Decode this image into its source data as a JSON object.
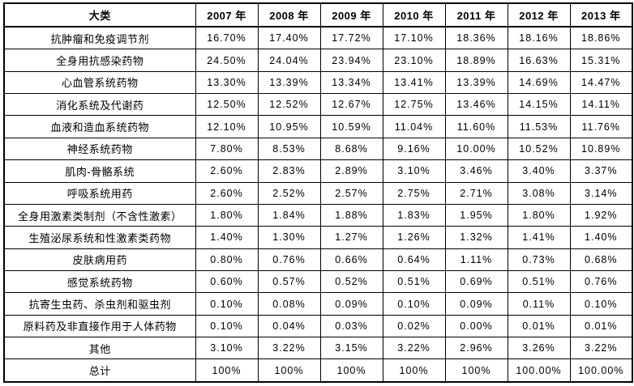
{
  "table": {
    "columns": [
      "大类",
      "2007 年",
      "2008 年",
      "2009 年",
      "2010 年",
      "2011 年",
      "2012 年",
      "2013 年"
    ],
    "rows": [
      {
        "category": "抗肿瘤和免疫调节剂",
        "values": [
          "16.70%",
          "17.40%",
          "17.72%",
          "17.10%",
          "18.36%",
          "18.16%",
          "18.86%"
        ]
      },
      {
        "category": "全身用抗感染药物",
        "values": [
          "24.50%",
          "24.04%",
          "23.94%",
          "23.10%",
          "18.89%",
          "16.63%",
          "15.31%"
        ]
      },
      {
        "category": "心血管系统药物",
        "values": [
          "13.30%",
          "13.39%",
          "13.34%",
          "13.41%",
          "13.39%",
          "14.69%",
          "14.47%"
        ]
      },
      {
        "category": "消化系统及代谢药",
        "values": [
          "12.50%",
          "12.52%",
          "12.67%",
          "12.75%",
          "13.46%",
          "14.15%",
          "14.11%"
        ]
      },
      {
        "category": "血液和造血系统药物",
        "values": [
          "12.10%",
          "10.95%",
          "10.59%",
          "11.04%",
          "11.60%",
          "11.53%",
          "11.76%"
        ]
      },
      {
        "category": "神经系统药物",
        "values": [
          "7.80%",
          "8.53%",
          "8.68%",
          "9.16%",
          "10.00%",
          "10.52%",
          "10.89%"
        ]
      },
      {
        "category": "肌肉-骨骼系统",
        "values": [
          "2.60%",
          "2.83%",
          "2.89%",
          "3.10%",
          "3.46%",
          "3.40%",
          "3.37%"
        ]
      },
      {
        "category": "呼吸系统用药",
        "values": [
          "2.60%",
          "2.52%",
          "2.57%",
          "2.75%",
          "2.71%",
          "3.08%",
          "3.14%"
        ]
      },
      {
        "category": "全身用激素类制剂（不含性激素）",
        "values": [
          "1.80%",
          "1.84%",
          "1.88%",
          "1.83%",
          "1.95%",
          "1.80%",
          "1.92%"
        ]
      },
      {
        "category": "生殖泌尿系统和性激素类药物",
        "values": [
          "1.40%",
          "1.30%",
          "1.27%",
          "1.26%",
          "1.32%",
          "1.41%",
          "1.40%"
        ]
      },
      {
        "category": "皮肤病用药",
        "values": [
          "0.80%",
          "0.76%",
          "0.66%",
          "0.64%",
          "1.11%",
          "0.73%",
          "0.68%"
        ]
      },
      {
        "category": "感觉系统药物",
        "values": [
          "0.60%",
          "0.57%",
          "0.52%",
          "0.51%",
          "0.69%",
          "0.51%",
          "0.76%"
        ]
      },
      {
        "category": "抗寄生虫药、杀虫剂和驱虫剂",
        "values": [
          "0.10%",
          "0.08%",
          "0.09%",
          "0.10%",
          "0.09%",
          "0.11%",
          "0.10%"
        ]
      },
      {
        "category": "原料药及非直接作用于人体药物",
        "values": [
          "0.10%",
          "0.04%",
          "0.03%",
          "0.02%",
          "0.00%",
          "0.01%",
          "0.01%"
        ]
      },
      {
        "category": "其他",
        "values": [
          "3.10%",
          "3.22%",
          "3.15%",
          "3.22%",
          "2.96%",
          "3.26%",
          "3.22%"
        ]
      },
      {
        "category": "总计",
        "values": [
          "100%",
          "100%",
          "100%",
          "100%",
          "100%",
          "100.00%",
          "100.00%"
        ]
      }
    ]
  },
  "chart_data": {
    "type": "table",
    "title": "",
    "unit": "%",
    "categories": [
      "2007",
      "2008",
      "2009",
      "2010",
      "2011",
      "2012",
      "2013"
    ],
    "series": [
      {
        "name": "抗肿瘤和免疫调节剂",
        "values": [
          16.7,
          17.4,
          17.72,
          17.1,
          18.36,
          18.16,
          18.86
        ]
      },
      {
        "name": "全身用抗感染药物",
        "values": [
          24.5,
          24.04,
          23.94,
          23.1,
          18.89,
          16.63,
          15.31
        ]
      },
      {
        "name": "心血管系统药物",
        "values": [
          13.3,
          13.39,
          13.34,
          13.41,
          13.39,
          14.69,
          14.47
        ]
      },
      {
        "name": "消化系统及代谢药",
        "values": [
          12.5,
          12.52,
          12.67,
          12.75,
          13.46,
          14.15,
          14.11
        ]
      },
      {
        "name": "血液和造血系统药物",
        "values": [
          12.1,
          10.95,
          10.59,
          11.04,
          11.6,
          11.53,
          11.76
        ]
      },
      {
        "name": "神经系统药物",
        "values": [
          7.8,
          8.53,
          8.68,
          9.16,
          10.0,
          10.52,
          10.89
        ]
      },
      {
        "name": "肌肉-骨骼系统",
        "values": [
          2.6,
          2.83,
          2.89,
          3.1,
          3.46,
          3.4,
          3.37
        ]
      },
      {
        "name": "呼吸系统用药",
        "values": [
          2.6,
          2.52,
          2.57,
          2.75,
          2.71,
          3.08,
          3.14
        ]
      },
      {
        "name": "全身用激素类制剂（不含性激素）",
        "values": [
          1.8,
          1.84,
          1.88,
          1.83,
          1.95,
          1.8,
          1.92
        ]
      },
      {
        "name": "生殖泌尿系统和性激素类药物",
        "values": [
          1.4,
          1.3,
          1.27,
          1.26,
          1.32,
          1.41,
          1.4
        ]
      },
      {
        "name": "皮肤病用药",
        "values": [
          0.8,
          0.76,
          0.66,
          0.64,
          1.11,
          0.73,
          0.68
        ]
      },
      {
        "name": "感觉系统药物",
        "values": [
          0.6,
          0.57,
          0.52,
          0.51,
          0.69,
          0.51,
          0.76
        ]
      },
      {
        "name": "抗寄生虫药、杀虫剂和驱虫剂",
        "values": [
          0.1,
          0.08,
          0.09,
          0.1,
          0.09,
          0.11,
          0.1
        ]
      },
      {
        "name": "原料药及非直接作用于人体药物",
        "values": [
          0.1,
          0.04,
          0.03,
          0.02,
          0.0,
          0.01,
          0.01
        ]
      },
      {
        "name": "其他",
        "values": [
          3.1,
          3.22,
          3.15,
          3.22,
          2.96,
          3.26,
          3.22
        ]
      },
      {
        "name": "总计",
        "values": [
          100,
          100,
          100,
          100,
          100,
          100.0,
          100.0
        ]
      }
    ],
    "colors": {
      "border": "#000000",
      "text": "#000000",
      "background": "#ffffff"
    }
  }
}
